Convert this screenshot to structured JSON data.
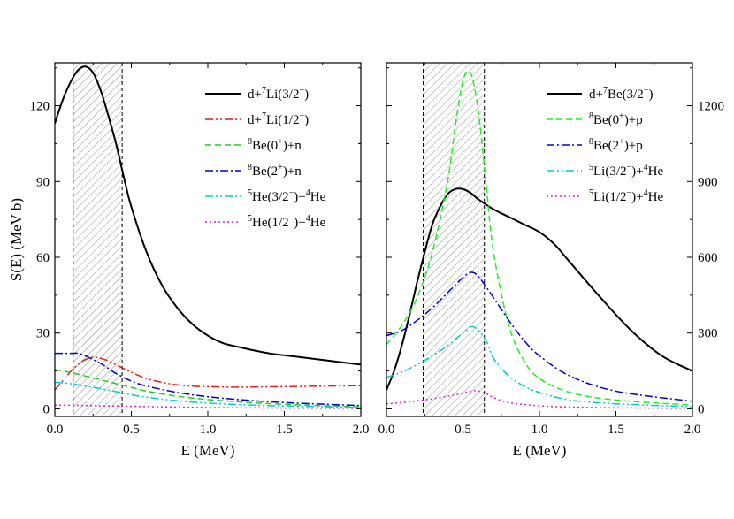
{
  "chart_data": [
    {
      "type": "line",
      "panel": "left",
      "xlabel": "E (MeV)",
      "ylabel": "S(E) (MeV b)",
      "xlim": [
        0,
        2.0
      ],
      "ylim": [
        -3,
        137
      ],
      "xticks": [
        0.0,
        0.5,
        1.0,
        1.5,
        2.0
      ],
      "xtick_labels": [
        "0.0",
        "0.5",
        "1.0",
        "1.5",
        "2.0"
      ],
      "yticks": [
        0,
        30,
        60,
        90,
        120
      ],
      "ytick_labels": [
        "0",
        "30",
        "60",
        "90",
        "120"
      ],
      "y_axis_side": "left",
      "shaded_region": [
        0.12,
        0.44
      ],
      "legend_position": "top-right",
      "series": [
        {
          "name": "d+7Li(3/2−)",
          "legend_text": [
            "d+",
            "7",
            "Li(3/2",
            "−",
            ")"
          ],
          "legend_sup": [
            false,
            true,
            false,
            true,
            false
          ],
          "color": "#000000",
          "style": "solid",
          "x": [
            0,
            0.05,
            0.1,
            0.15,
            0.2,
            0.25,
            0.3,
            0.35,
            0.4,
            0.45,
            0.5,
            0.6,
            0.7,
            0.8,
            0.9,
            1.0,
            1.1,
            1.2,
            1.4,
            1.6,
            1.8,
            2.0
          ],
          "y": [
            113,
            122,
            129,
            134,
            135.5,
            133,
            126,
            116,
            105,
            92,
            80,
            62,
            49,
            40,
            33.5,
            29,
            26,
            24.5,
            22,
            20.5,
            19,
            17.5
          ]
        },
        {
          "name": "d+7Li(1/2−)",
          "legend_text": [
            "d+",
            "7",
            "Li(1/2",
            "−",
            ")"
          ],
          "legend_sup": [
            false,
            true,
            false,
            true,
            false
          ],
          "color": "#e11c1c",
          "style": "dashdotdot",
          "x": [
            0,
            0.05,
            0.1,
            0.15,
            0.2,
            0.25,
            0.3,
            0.35,
            0.4,
            0.5,
            0.6,
            0.7,
            0.8,
            0.9,
            1.0,
            1.2,
            1.5,
            2.0
          ],
          "y": [
            7.5,
            11,
            14.5,
            17.5,
            19.5,
            20.5,
            20,
            19,
            17.5,
            14.5,
            12,
            10.5,
            9.5,
            9,
            8.8,
            8.6,
            8.8,
            9.2
          ]
        },
        {
          "name": "8Be(0+)+n",
          "legend_text": [
            "8",
            "Be(0",
            "+",
            ")+n"
          ],
          "legend_sup": [
            true,
            false,
            true,
            false
          ],
          "color": "#22cc22",
          "style": "dashed",
          "x": [
            0,
            0.1,
            0.2,
            0.3,
            0.4,
            0.5,
            0.6,
            0.8,
            1.0,
            1.2,
            1.5,
            2.0
          ],
          "y": [
            15.5,
            14.5,
            13,
            11.5,
            10,
            8.5,
            7,
            5,
            3.7,
            2.8,
            1.8,
            0.8
          ]
        },
        {
          "name": "8Be(2+)+n",
          "legend_text": [
            "8",
            "Be(2",
            "+",
            ")+n"
          ],
          "legend_sup": [
            true,
            false,
            true,
            false
          ],
          "color": "#0000cc",
          "style": "dashdot",
          "x": [
            0,
            0.1,
            0.15,
            0.2,
            0.25,
            0.3,
            0.35,
            0.4,
            0.5,
            0.6,
            0.8,
            1.0,
            1.2,
            1.5,
            2.0
          ],
          "y": [
            22,
            22,
            22,
            21,
            19.5,
            18,
            16,
            14,
            11,
            9,
            6.5,
            4.8,
            3.7,
            2.5,
            1.3
          ]
        },
        {
          "name": "5He(3/2−)+4He",
          "legend_text": [
            "5",
            "He(3/2",
            "−",
            ")+",
            "4",
            "He"
          ],
          "legend_sup": [
            true,
            false,
            true,
            false,
            true,
            false
          ],
          "color": "#00cccc",
          "style": "dashdotdot",
          "x": [
            0,
            0.1,
            0.2,
            0.3,
            0.4,
            0.5,
            0.6,
            0.8,
            1.0,
            1.2,
            1.5,
            2.0
          ],
          "y": [
            10.5,
            10,
            9,
            8,
            6.8,
            5.6,
            4.6,
            3.2,
            2.3,
            1.7,
            1.1,
            0.6
          ]
        },
        {
          "name": "5He(1/2−)+4He",
          "legend_text": [
            "5",
            "He(1/2",
            "−",
            ")+",
            "4",
            "He"
          ],
          "legend_sup": [
            true,
            false,
            true,
            false,
            true,
            false
          ],
          "color": "#e020e0",
          "style": "dotted",
          "x": [
            0,
            0.2,
            0.4,
            0.6,
            0.8,
            1.0,
            1.5,
            2.0
          ],
          "y": [
            1.5,
            1.3,
            1.1,
            0.9,
            0.7,
            0.5,
            0.3,
            0.2
          ]
        }
      ]
    },
    {
      "type": "line",
      "panel": "right",
      "xlabel": "E (MeV)",
      "ylabel": "",
      "xlim": [
        0,
        2.0
      ],
      "ylim": [
        -30,
        1370
      ],
      "xticks": [
        0.0,
        0.5,
        1.0,
        1.5,
        2.0
      ],
      "xtick_labels": [
        "0.0",
        "0.5",
        "1.0",
        "1.5",
        "2.0"
      ],
      "yticks": [
        0,
        300,
        600,
        900,
        1200
      ],
      "ytick_labels": [
        "0",
        "300",
        "600",
        "900",
        "1200"
      ],
      "y_axis_side": "right",
      "shaded_region": [
        0.24,
        0.64
      ],
      "legend_position": "top-right",
      "series": [
        {
          "name": "d+7Be(3/2−)",
          "legend_text": [
            "d+",
            "7",
            "Be(3/2",
            "−",
            ")"
          ],
          "legend_sup": [
            false,
            true,
            false,
            true,
            false
          ],
          "color": "#000000",
          "style": "solid",
          "x": [
            0,
            0.05,
            0.1,
            0.15,
            0.2,
            0.25,
            0.3,
            0.35,
            0.4,
            0.45,
            0.5,
            0.55,
            0.6,
            0.7,
            0.8,
            0.9,
            1.0,
            1.1,
            1.2,
            1.4,
            1.6,
            1.8,
            2.0
          ],
          "y": [
            75,
            150,
            250,
            370,
            500,
            620,
            730,
            800,
            850,
            870,
            870,
            855,
            830,
            790,
            760,
            730,
            700,
            650,
            580,
            440,
            310,
            210,
            150
          ]
        },
        {
          "name": "8Be(0+)+p",
          "legend_text": [
            "8",
            "Be(0",
            "+",
            ")+p"
          ],
          "legend_sup": [
            true,
            false,
            true,
            false
          ],
          "color": "#22ee22",
          "style": "dashed",
          "x": [
            0,
            0.1,
            0.2,
            0.3,
            0.4,
            0.45,
            0.5,
            0.55,
            0.6,
            0.65,
            0.7,
            0.8,
            0.9,
            1.0,
            1.2,
            1.5,
            2.0
          ],
          "y": [
            255,
            330,
            440,
            620,
            900,
            1120,
            1300,
            1330,
            1180,
            900,
            620,
            330,
            190,
            120,
            65,
            35,
            15
          ]
        },
        {
          "name": "8Be(2+)+p",
          "legend_text": [
            "8",
            "Be(2",
            "+",
            ")+p"
          ],
          "legend_sup": [
            true,
            false,
            true,
            false
          ],
          "color": "#0000cc",
          "style": "dashdot",
          "x": [
            0,
            0.1,
            0.2,
            0.3,
            0.4,
            0.5,
            0.55,
            0.6,
            0.7,
            0.8,
            0.9,
            1.0,
            1.2,
            1.5,
            2.0
          ],
          "y": [
            290,
            310,
            350,
            400,
            460,
            520,
            540,
            525,
            440,
            350,
            270,
            210,
            130,
            70,
            30
          ]
        },
        {
          "name": "5Li(3/2−)+4He",
          "legend_text": [
            "5",
            "Li(3/2",
            "−",
            ")+",
            "4",
            "He"
          ],
          "legend_sup": [
            true,
            false,
            true,
            false,
            true,
            false
          ],
          "color": "#00cccc",
          "style": "dashdotdot",
          "x": [
            0,
            0.1,
            0.2,
            0.3,
            0.4,
            0.5,
            0.57,
            0.65,
            0.7,
            0.8,
            0.9,
            1.0,
            1.2,
            1.5,
            2.0
          ],
          "y": [
            125,
            145,
            175,
            210,
            250,
            300,
            325,
            270,
            200,
            130,
            90,
            65,
            35,
            20,
            8
          ]
        },
        {
          "name": "5Li(1/2−)+4He",
          "legend_text": [
            "5",
            "Li(1/2",
            "−",
            ")+",
            "4",
            "He"
          ],
          "legend_sup": [
            true,
            false,
            true,
            false,
            true,
            false
          ],
          "color": "#e020e0",
          "style": "dotted",
          "x": [
            0,
            0.1,
            0.2,
            0.3,
            0.4,
            0.5,
            0.58,
            0.65,
            0.7,
            0.8,
            1.0,
            1.2,
            1.5,
            2.0
          ],
          "y": [
            20,
            25,
            32,
            40,
            50,
            62,
            72,
            60,
            45,
            25,
            12,
            7,
            4,
            2
          ]
        }
      ]
    }
  ]
}
